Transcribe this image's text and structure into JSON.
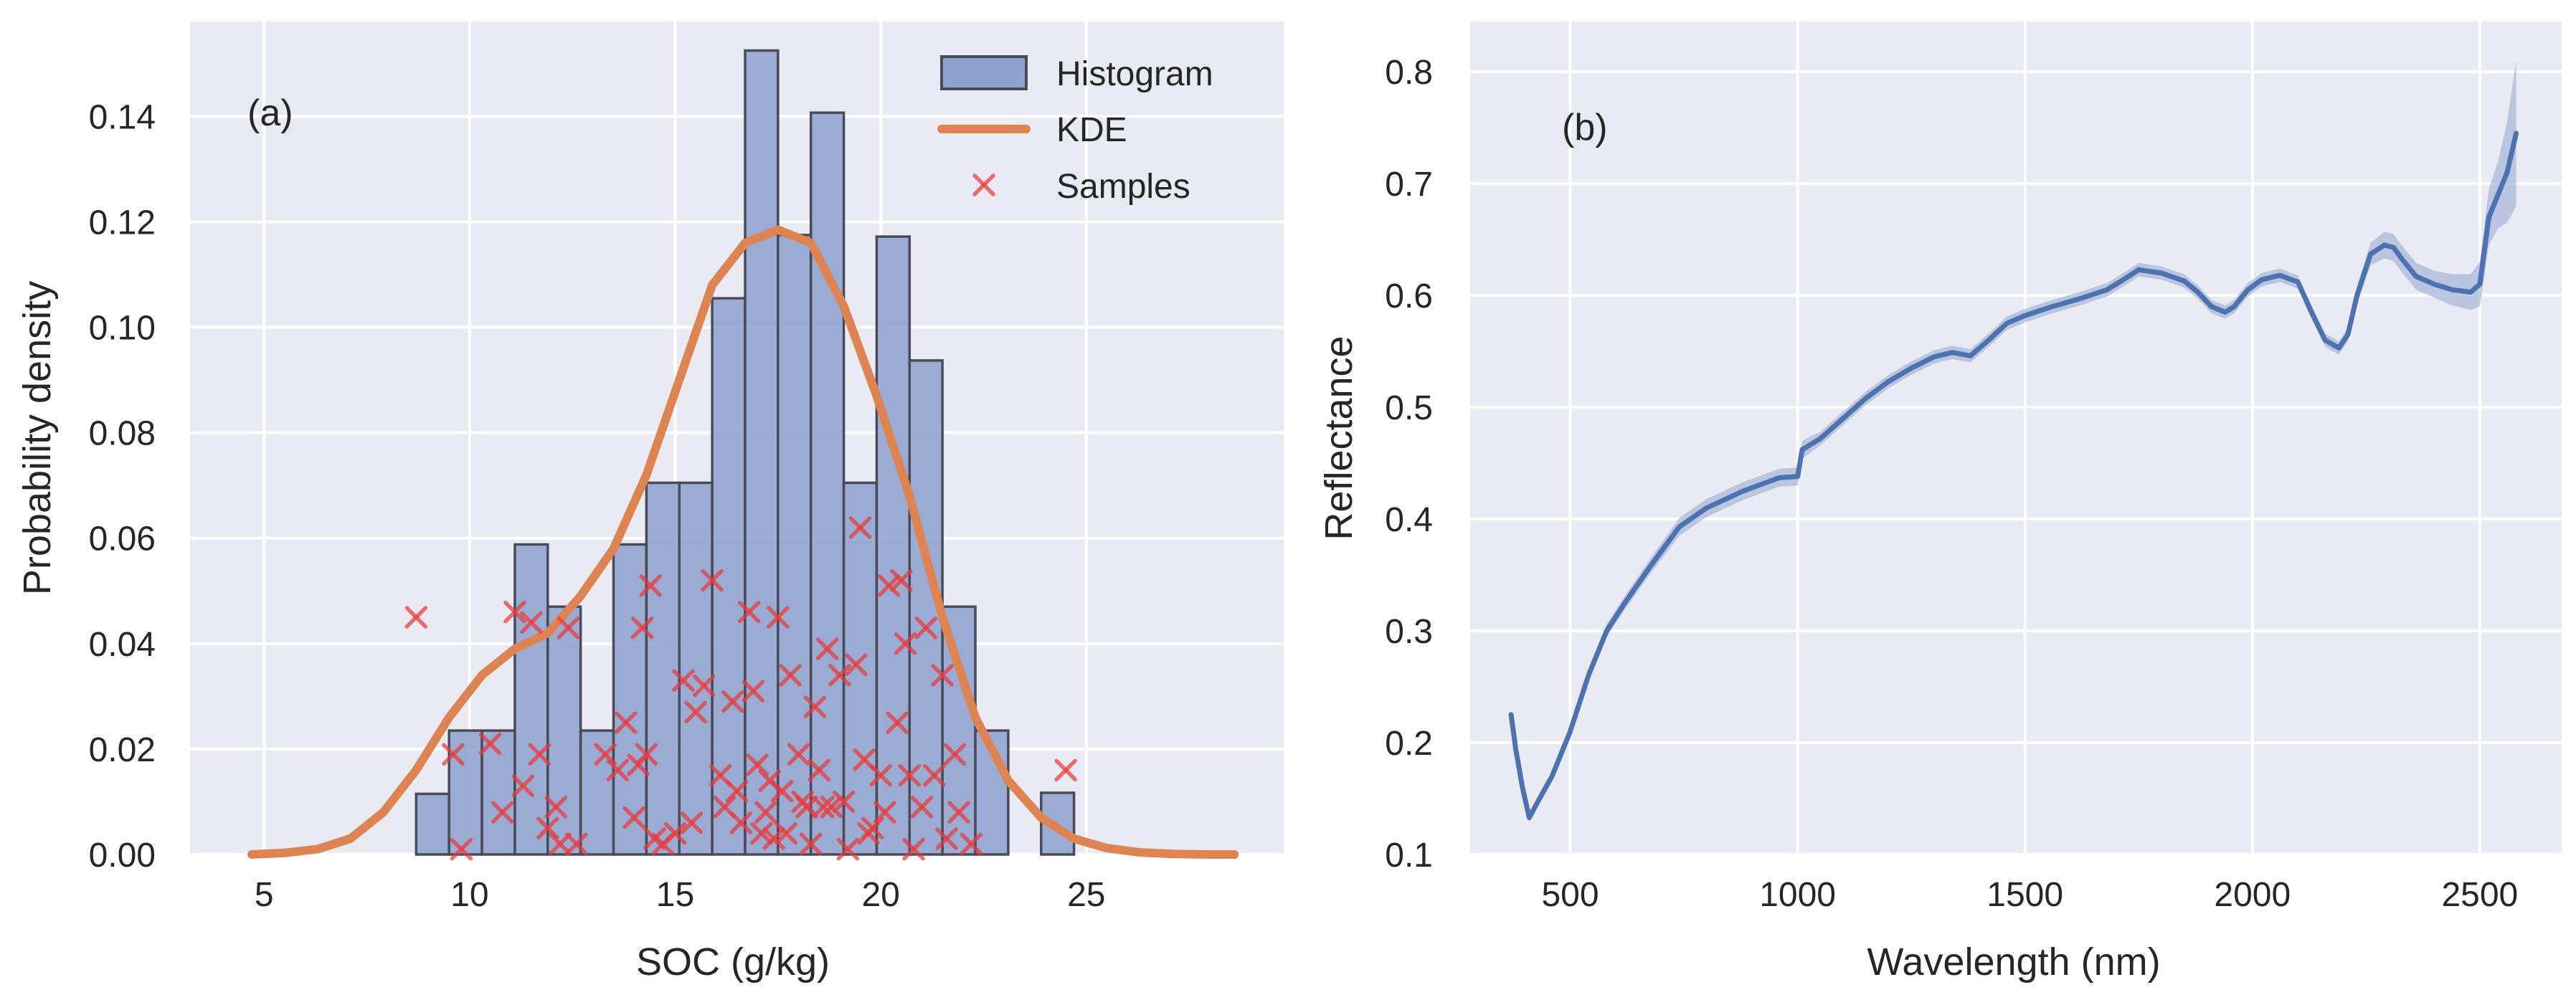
{
  "colors": {
    "panel_bg": "#eaeaf2",
    "grid": "#ffffff",
    "hist_fill": "#8fa3cf",
    "hist_edge": "#4a4a5a",
    "kde": "#dd8452",
    "samples": "#e83a3a",
    "spectrum": "#4c72b0",
    "band": "#a9b8da"
  },
  "chart_data": [
    {
      "type": "bar",
      "panel_label": "(a)",
      "title": "",
      "xlabel": "SOC (g/kg)",
      "ylabel": "Probability density",
      "xlim": [
        3.2,
        29.8
      ],
      "ylim": [
        0,
        0.158
      ],
      "xticks": [
        5,
        10,
        15,
        20,
        25
      ],
      "xtick_labels": [
        "5",
        "10",
        "15",
        "20",
        "25"
      ],
      "yticks": [
        0.0,
        0.02,
        0.04,
        0.06,
        0.08,
        0.1,
        0.12,
        0.14
      ],
      "ytick_labels": [
        "0.00",
        "0.02",
        "0.04",
        "0.06",
        "0.08",
        "0.10",
        "0.12",
        "0.14"
      ],
      "grid": true,
      "legend": {
        "position": "top-right",
        "entries": [
          {
            "label": "Histogram",
            "kind": "patch"
          },
          {
            "label": "KDE",
            "kind": "line"
          },
          {
            "label": "Samples",
            "kind": "marker"
          }
        ]
      },
      "histogram": {
        "bin_width": 0.8,
        "bins": [
          {
            "x0": 8.7,
            "value": 0.0115
          },
          {
            "x0": 9.5,
            "value": 0.0235
          },
          {
            "x0": 10.3,
            "value": 0.0235
          },
          {
            "x0": 11.1,
            "value": 0.0588
          },
          {
            "x0": 11.9,
            "value": 0.047
          },
          {
            "x0": 12.7,
            "value": 0.0235
          },
          {
            "x0": 13.5,
            "value": 0.0588
          },
          {
            "x0": 14.3,
            "value": 0.0705
          },
          {
            "x0": 15.1,
            "value": 0.0705
          },
          {
            "x0": 15.9,
            "value": 0.1055
          },
          {
            "x0": 16.7,
            "value": 0.1525
          },
          {
            "x0": 17.5,
            "value": 0.1175
          },
          {
            "x0": 18.3,
            "value": 0.1407
          },
          {
            "x0": 19.1,
            "value": 0.0705
          },
          {
            "x0": 19.9,
            "value": 0.1172
          },
          {
            "x0": 20.7,
            "value": 0.0937
          },
          {
            "x0": 21.5,
            "value": 0.047
          },
          {
            "x0": 22.3,
            "value": 0.0235
          },
          {
            "x0": 23.1,
            "value": 0.0
          },
          {
            "x0": 23.9,
            "value": 0.0117
          }
        ]
      },
      "kde": {
        "x": [
          4.7,
          5.5,
          6.3,
          7.1,
          7.9,
          8.7,
          9.5,
          10.3,
          11.1,
          11.9,
          12.7,
          13.5,
          14.3,
          15.1,
          15.9,
          16.7,
          17.5,
          18.3,
          19.1,
          19.9,
          20.7,
          21.5,
          22.3,
          23.1,
          23.9,
          24.7,
          25.5,
          26.3,
          27.1,
          27.9,
          28.6
        ],
        "y": [
          0.0,
          0.0003,
          0.001,
          0.003,
          0.008,
          0.016,
          0.026,
          0.034,
          0.039,
          0.042,
          0.049,
          0.058,
          0.072,
          0.09,
          0.108,
          0.116,
          0.1185,
          0.116,
          0.104,
          0.087,
          0.068,
          0.045,
          0.026,
          0.014,
          0.007,
          0.003,
          0.0012,
          0.0004,
          0.0001,
          0.0,
          0.0
        ]
      },
      "samples": {
        "x": [
          8.7,
          9.6,
          9.8,
          10.5,
          10.8,
          11.1,
          11.3,
          11.5,
          11.7,
          11.9,
          12.1,
          12.2,
          12.4,
          12.6,
          13.3,
          13.6,
          13.8,
          14.0,
          14.1,
          14.2,
          14.3,
          14.4,
          14.5,
          14.7,
          15.0,
          15.2,
          15.4,
          15.5,
          15.7,
          15.9,
          16.1,
          16.2,
          16.4,
          16.5,
          16.6,
          16.8,
          16.9,
          17.0,
          17.1,
          17.2,
          17.3,
          17.4,
          17.5,
          17.6,
          17.7,
          17.8,
          18.0,
          18.1,
          18.2,
          18.3,
          18.4,
          18.5,
          18.6,
          18.7,
          18.8,
          19.0,
          19.1,
          19.2,
          19.4,
          19.5,
          19.6,
          19.7,
          19.8,
          20.0,
          20.1,
          20.2,
          20.4,
          20.5,
          20.6,
          20.7,
          20.8,
          21.0,
          21.1,
          21.3,
          21.5,
          21.6,
          21.8,
          21.9,
          22.2,
          24.5
        ],
        "y": [
          0.045,
          0.019,
          0.001,
          0.021,
          0.008,
          0.046,
          0.013,
          0.044,
          0.019,
          0.005,
          0.009,
          0.002,
          0.043,
          0.002,
          0.019,
          0.016,
          0.025,
          0.007,
          0.017,
          0.043,
          0.019,
          0.051,
          0.003,
          0.002,
          0.004,
          0.033,
          0.006,
          0.027,
          0.032,
          0.052,
          0.015,
          0.009,
          0.029,
          0.012,
          0.006,
          0.046,
          0.031,
          0.017,
          0.004,
          0.008,
          0.014,
          0.003,
          0.045,
          0.012,
          0.004,
          0.034,
          0.019,
          0.01,
          0.009,
          0.002,
          0.028,
          0.016,
          0.009,
          0.039,
          0.009,
          0.034,
          0.01,
          0.001,
          0.036,
          0.062,
          0.018,
          0.004,
          0.005,
          0.015,
          0.008,
          0.051,
          0.025,
          0.052,
          0.04,
          0.015,
          0.001,
          0.009,
          0.043,
          0.015,
          0.034,
          0.003,
          0.019,
          0.008,
          0.002,
          0.016
        ]
      }
    },
    {
      "type": "line",
      "panel_label": "(b)",
      "title": "",
      "xlabel": "Wavelength (nm)",
      "ylabel": "Reflectance",
      "xlim": [
        280,
        2680
      ],
      "ylim": [
        0.1,
        0.845
      ],
      "xticks": [
        500,
        1000,
        1500,
        2000,
        2500
      ],
      "xtick_labels": [
        "500",
        "1000",
        "1500",
        "2000",
        "2500"
      ],
      "yticks": [
        0.1,
        0.2,
        0.3,
        0.4,
        0.5,
        0.6,
        0.7,
        0.8
      ],
      "ytick_labels": [
        "0.1",
        "0.2",
        "0.3",
        "0.4",
        "0.5",
        "0.6",
        "0.7",
        "0.8"
      ],
      "grid": true,
      "series": [
        {
          "name": "Reflectance",
          "x": [
            370,
            380,
            395,
            410,
            430,
            460,
            500,
            540,
            580,
            620,
            680,
            740,
            800,
            880,
            960,
            1000,
            1005,
            1010,
            1050,
            1100,
            1150,
            1200,
            1250,
            1300,
            1340,
            1380,
            1420,
            1460,
            1500,
            1560,
            1620,
            1680,
            1720,
            1750,
            1800,
            1850,
            1880,
            1910,
            1940,
            1960,
            1990,
            2020,
            2060,
            2100,
            2130,
            2160,
            2190,
            2210,
            2230,
            2260,
            2290,
            2310,
            2330,
            2360,
            2400,
            2440,
            2480,
            2500,
            2520,
            2540,
            2560,
            2580
          ],
          "y": [
            0.225,
            0.195,
            0.16,
            0.133,
            0.148,
            0.17,
            0.21,
            0.26,
            0.3,
            0.325,
            0.36,
            0.393,
            0.41,
            0.425,
            0.437,
            0.438,
            0.45,
            0.462,
            0.472,
            0.49,
            0.508,
            0.523,
            0.535,
            0.545,
            0.549,
            0.546,
            0.56,
            0.575,
            0.582,
            0.59,
            0.597,
            0.605,
            0.615,
            0.623,
            0.62,
            0.613,
            0.603,
            0.59,
            0.585,
            0.59,
            0.605,
            0.614,
            0.618,
            0.612,
            0.585,
            0.56,
            0.553,
            0.565,
            0.6,
            0.637,
            0.645,
            0.643,
            0.632,
            0.617,
            0.61,
            0.605,
            0.603,
            0.61,
            0.67,
            0.69,
            0.71,
            0.745
          ],
          "band": [
            0.004,
            0.004,
            0.004,
            0.004,
            0.004,
            0.004,
            0.005,
            0.006,
            0.006,
            0.006,
            0.007,
            0.008,
            0.008,
            0.008,
            0.008,
            0.008,
            0.008,
            0.008,
            0.006,
            0.006,
            0.006,
            0.006,
            0.006,
            0.006,
            0.006,
            0.006,
            0.006,
            0.006,
            0.006,
            0.006,
            0.006,
            0.006,
            0.006,
            0.006,
            0.006,
            0.006,
            0.006,
            0.006,
            0.006,
            0.006,
            0.006,
            0.006,
            0.006,
            0.006,
            0.006,
            0.006,
            0.006,
            0.006,
            0.008,
            0.01,
            0.012,
            0.012,
            0.012,
            0.012,
            0.012,
            0.014,
            0.016,
            0.02,
            0.025,
            0.03,
            0.045,
            0.065
          ]
        }
      ]
    }
  ]
}
